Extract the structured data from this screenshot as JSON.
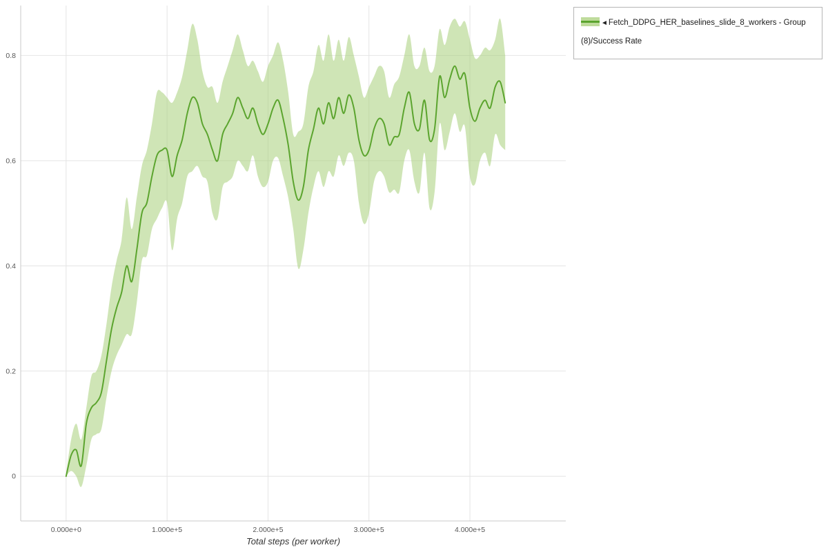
{
  "legend": {
    "arrow": "◄",
    "label": "Fetch_DDPG_HER_baselines_slide_8_workers - Group (8)/Success Rate"
  },
  "axes": {
    "x_label": "Total steps (per worker)",
    "xlim": [
      -45000,
      495000
    ],
    "ylim": [
      -0.085,
      0.895
    ],
    "x_ticks": [
      {
        "value": 0,
        "label": "0.000e+0"
      },
      {
        "value": 100000,
        "label": "1.000e+5"
      },
      {
        "value": 200000,
        "label": "2.000e+5"
      },
      {
        "value": 300000,
        "label": "3.000e+5"
      },
      {
        "value": 400000,
        "label": "4.000e+5"
      }
    ],
    "y_ticks": [
      {
        "value": 0,
        "label": "0"
      },
      {
        "value": 0.2,
        "label": "0.2"
      },
      {
        "value": 0.4,
        "label": "0.4"
      },
      {
        "value": 0.6,
        "label": "0.6"
      },
      {
        "value": 0.8,
        "label": "0.8"
      }
    ]
  },
  "colors": {
    "line": "#5ba42e",
    "band": "#a8cf7a",
    "band_opacity": 0.55,
    "grid": "#e4e4e4",
    "axis": "#c9c9c9",
    "tick_text": "#555555",
    "legend_border": "#b5b5b5"
  },
  "chart_data": {
    "type": "line",
    "title": "",
    "xlabel": "Total steps (per worker)",
    "ylabel": "",
    "grid": true,
    "legend_position": "top-right",
    "series_name": "Fetch_DDPG_HER_baselines_slide_8_workers - Group (8)/Success Rate",
    "xlim": [
      -45000,
      495000
    ],
    "ylim": [
      -0.085,
      0.895
    ],
    "x": [
      0,
      5000,
      10000,
      15000,
      20000,
      25000,
      30000,
      35000,
      40000,
      45000,
      50000,
      55000,
      60000,
      65000,
      70000,
      75000,
      80000,
      85000,
      90000,
      95000,
      100000,
      105000,
      110000,
      115000,
      120000,
      125000,
      130000,
      135000,
      140000,
      145000,
      150000,
      155000,
      160000,
      165000,
      170000,
      175000,
      180000,
      185000,
      190000,
      195000,
      200000,
      205000,
      210000,
      215000,
      220000,
      225000,
      230000,
      235000,
      240000,
      245000,
      250000,
      255000,
      260000,
      265000,
      270000,
      275000,
      280000,
      285000,
      290000,
      295000,
      300000,
      305000,
      310000,
      315000,
      320000,
      325000,
      330000,
      335000,
      340000,
      345000,
      350000,
      355000,
      360000,
      365000,
      370000,
      375000,
      380000,
      385000,
      390000,
      395000,
      400000,
      405000,
      410000,
      415000,
      420000,
      425000,
      430000,
      435000
    ],
    "y": [
      0.0,
      0.04,
      0.05,
      0.02,
      0.1,
      0.13,
      0.14,
      0.16,
      0.22,
      0.28,
      0.32,
      0.35,
      0.4,
      0.37,
      0.43,
      0.5,
      0.52,
      0.57,
      0.61,
      0.62,
      0.62,
      0.57,
      0.61,
      0.64,
      0.69,
      0.72,
      0.71,
      0.67,
      0.65,
      0.62,
      0.6,
      0.65,
      0.67,
      0.69,
      0.72,
      0.7,
      0.68,
      0.7,
      0.67,
      0.65,
      0.67,
      0.7,
      0.715,
      0.68,
      0.63,
      0.56,
      0.525,
      0.55,
      0.62,
      0.66,
      0.7,
      0.67,
      0.71,
      0.68,
      0.72,
      0.69,
      0.725,
      0.7,
      0.64,
      0.61,
      0.62,
      0.66,
      0.68,
      0.67,
      0.63,
      0.645,
      0.65,
      0.7,
      0.73,
      0.67,
      0.66,
      0.715,
      0.64,
      0.66,
      0.76,
      0.72,
      0.755,
      0.78,
      0.755,
      0.765,
      0.7,
      0.675,
      0.7,
      0.715,
      0.7,
      0.74,
      0.75,
      0.71
    ],
    "y_lower": [
      0.0,
      0.01,
      0.0,
      -0.02,
      0.02,
      0.07,
      0.08,
      0.09,
      0.15,
      0.2,
      0.23,
      0.25,
      0.27,
      0.27,
      0.33,
      0.41,
      0.42,
      0.47,
      0.49,
      0.51,
      0.52,
      0.43,
      0.49,
      0.52,
      0.57,
      0.58,
      0.59,
      0.57,
      0.56,
      0.5,
      0.49,
      0.55,
      0.56,
      0.57,
      0.6,
      0.59,
      0.58,
      0.61,
      0.57,
      0.55,
      0.56,
      0.6,
      0.605,
      0.57,
      0.53,
      0.47,
      0.395,
      0.43,
      0.5,
      0.55,
      0.58,
      0.55,
      0.58,
      0.57,
      0.61,
      0.59,
      0.615,
      0.6,
      0.52,
      0.48,
      0.5,
      0.56,
      0.58,
      0.57,
      0.54,
      0.545,
      0.54,
      0.6,
      0.62,
      0.56,
      0.54,
      0.615,
      0.51,
      0.54,
      0.67,
      0.62,
      0.655,
      0.69,
      0.655,
      0.665,
      0.57,
      0.555,
      0.6,
      0.615,
      0.59,
      0.65,
      0.63,
      0.62
    ],
    "y_upper": [
      0.005,
      0.07,
      0.1,
      0.07,
      0.13,
      0.19,
      0.2,
      0.23,
      0.29,
      0.36,
      0.41,
      0.45,
      0.53,
      0.47,
      0.53,
      0.59,
      0.62,
      0.67,
      0.73,
      0.73,
      0.72,
      0.71,
      0.73,
      0.76,
      0.81,
      0.86,
      0.83,
      0.77,
      0.74,
      0.74,
      0.71,
      0.75,
      0.78,
      0.81,
      0.84,
      0.81,
      0.78,
      0.79,
      0.77,
      0.75,
      0.78,
      0.8,
      0.825,
      0.79,
      0.73,
      0.65,
      0.655,
      0.67,
      0.74,
      0.77,
      0.82,
      0.79,
      0.84,
      0.79,
      0.83,
      0.79,
      0.835,
      0.8,
      0.76,
      0.72,
      0.74,
      0.76,
      0.78,
      0.77,
      0.72,
      0.745,
      0.76,
      0.8,
      0.84,
      0.78,
      0.78,
      0.815,
      0.77,
      0.78,
      0.85,
      0.82,
      0.855,
      0.87,
      0.855,
      0.865,
      0.83,
      0.795,
      0.8,
      0.815,
      0.81,
      0.83,
      0.87,
      0.8
    ]
  }
}
